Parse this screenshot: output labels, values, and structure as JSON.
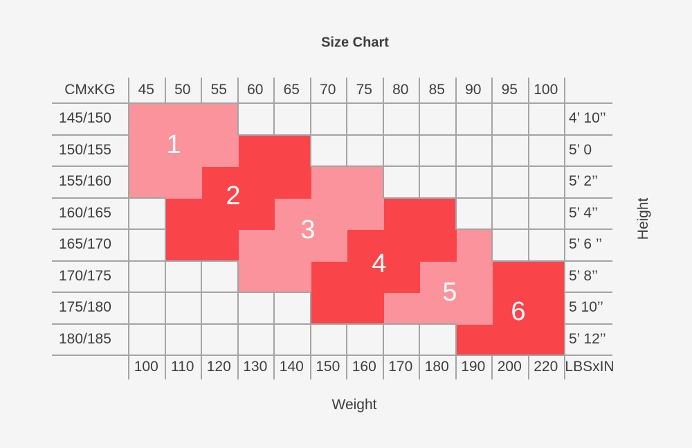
{
  "title": "Size Chart",
  "corner_top": "CMxKG",
  "corner_bottom": "LBSxIN",
  "xlabel": "Weight",
  "ylabel": "Height",
  "chart_data": {
    "type": "heatmap",
    "title": "Size Chart",
    "xlabel": "Weight",
    "ylabel": "Height",
    "x_top_units": "KG",
    "x_bottom_units": "LBS",
    "columns_kg": [
      "45",
      "50",
      "55",
      "60",
      "65",
      "70",
      "75",
      "80",
      "85",
      "90",
      "95",
      "100"
    ],
    "columns_lbs": [
      "100",
      "110",
      "120",
      "130",
      "140",
      "150",
      "160",
      "170",
      "180",
      "190",
      "200",
      "220"
    ],
    "rows_cm": [
      "145/150",
      "150/155",
      "155/160",
      "160/165",
      "165/170",
      "170/175",
      "175/180",
      "180/185"
    ],
    "rows_in": [
      "4’ 10’’",
      "5’ 0",
      "5’ 2’’",
      "5’ 4’’",
      "5’ 6 ’’",
      "5’ 8’’",
      "5 10’’",
      "5’ 12’’"
    ],
    "regions": [
      {
        "size": "1",
        "color": "pink",
        "cells": [
          [
            1,
            1,
            3
          ],
          [
            2,
            1,
            3
          ],
          [
            3,
            1,
            2
          ]
        ],
        "label_at": [
          176,
          97
        ]
      },
      {
        "size": "2",
        "color": "red",
        "cells": [
          [
            2,
            4,
            5
          ],
          [
            3,
            3,
            5
          ],
          [
            4,
            2,
            4
          ],
          [
            5,
            2,
            3
          ]
        ],
        "label_at": [
          262,
          171
        ]
      },
      {
        "size": "3",
        "color": "pink",
        "cells": [
          [
            3,
            6,
            7
          ],
          [
            4,
            5,
            7
          ],
          [
            5,
            4,
            6
          ],
          [
            6,
            4,
            5
          ]
        ],
        "label_at": [
          370,
          220
        ]
      },
      {
        "size": "4",
        "color": "red",
        "cells": [
          [
            4,
            8,
            9
          ],
          [
            5,
            7,
            9
          ],
          [
            6,
            6,
            8
          ],
          [
            7,
            6,
            7
          ]
        ],
        "label_at": [
          473,
          269
        ]
      },
      {
        "size": "5",
        "color": "pink",
        "cells": [
          [
            5,
            10,
            10
          ],
          [
            6,
            9,
            10
          ],
          [
            7,
            8,
            10
          ]
        ],
        "label_at": [
          575,
          310
        ]
      },
      {
        "size": "6",
        "color": "red",
        "cells": [
          [
            6,
            11,
            12
          ],
          [
            7,
            11,
            12
          ],
          [
            8,
            10,
            12
          ]
        ],
        "label_at": [
          674,
          338
        ]
      }
    ]
  },
  "colors": {
    "pink": "#FA939B",
    "red": "#F9454A",
    "grid_line": "#A4A4A4",
    "text": "#3D3D3D",
    "background": "#F5F5F6",
    "region_label": "#FFFFFF"
  }
}
